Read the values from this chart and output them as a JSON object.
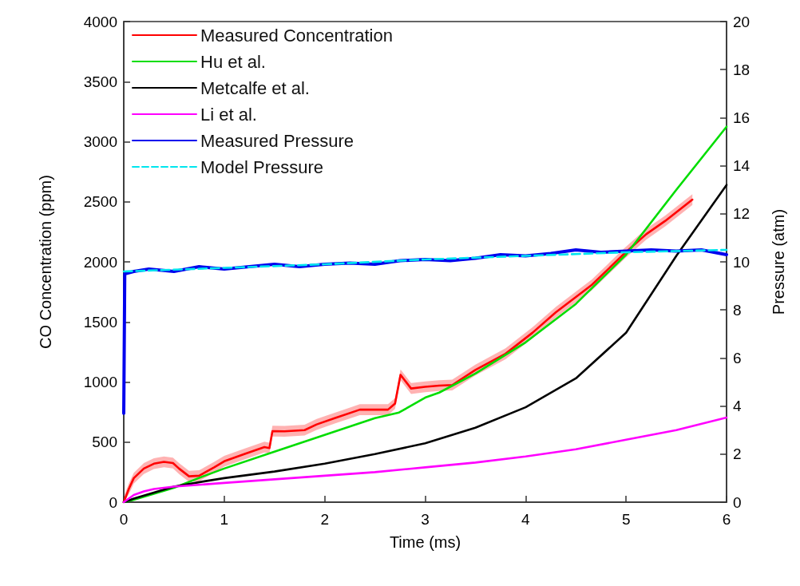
{
  "chart_data": {
    "type": "line",
    "xlabel": "Time (ms)",
    "ylabel": "CO Concentration (ppm)",
    "y2label": "Pressure (atm)",
    "xlim": [
      0,
      6
    ],
    "xticks": [
      0,
      1,
      2,
      3,
      4,
      5,
      6
    ],
    "ylim": [
      0,
      4000
    ],
    "yticks": [
      0,
      500,
      1000,
      1500,
      2000,
      2500,
      3000,
      3500,
      4000
    ],
    "y2lim": [
      0,
      20
    ],
    "y2ticks": [
      0,
      2,
      4,
      6,
      8,
      10,
      12,
      14,
      16,
      18,
      20
    ],
    "grid": false,
    "legend": "top left",
    "marker": "none",
    "series": [
      {
        "name": "Measured Concentration",
        "color": "#ff0000",
        "x": [
          0,
          0.05,
          0.1,
          0.2,
          0.3,
          0.4,
          0.49,
          0.55,
          0.65,
          0.75,
          0.9,
          1.0,
          1.2,
          1.4,
          1.45,
          1.48,
          1.6,
          1.8,
          1.92,
          2.1,
          2.35,
          2.63,
          2.7,
          2.755,
          2.86,
          3.0,
          3.14,
          3.27,
          3.5,
          3.8,
          4.07,
          4.3,
          4.66,
          4.99,
          5.2,
          5.39,
          5.66
        ],
        "values": [
          0,
          110,
          200,
          280,
          320,
          335,
          326,
          280,
          215,
          220,
          290,
          340,
          400,
          458,
          450,
          591,
          590,
          600,
          647,
          700,
          770,
          770,
          820,
          1060,
          946,
          960,
          970,
          975,
          1100,
          1235,
          1411,
          1580,
          1809,
          2075,
          2230,
          2341,
          2518
        ],
        "lower": [
          0,
          65,
          155,
          235,
          275,
          290,
          281,
          235,
          170,
          175,
          245,
          295,
          355,
          413,
          405,
          546,
          545,
          555,
          602,
          655,
          725,
          725,
          775,
          1015,
          901,
          915,
          925,
          930,
          1055,
          1190,
          1366,
          1535,
          1764,
          2030,
          2185,
          2296,
          2473
        ],
        "upper": [
          45,
          155,
          245,
          325,
          365,
          380,
          371,
          325,
          260,
          265,
          335,
          385,
          445,
          503,
          495,
          636,
          635,
          645,
          692,
          745,
          815,
          815,
          865,
          1105,
          991,
          1005,
          1015,
          1020,
          1145,
          1280,
          1456,
          1625,
          1854,
          2120,
          2275,
          2386,
          2563
        ]
      },
      {
        "name": "Hu et al.",
        "color": "#00dd00",
        "x": [
          0,
          0.1,
          0.5,
          0.79,
          1,
          1.5,
          2,
          2.5,
          2.74,
          3,
          3.14,
          3.5,
          4,
          4.5,
          5,
          5.5,
          6
        ],
        "values": [
          0,
          20,
          120,
          215,
          280,
          420,
          560,
          700,
          746,
          870,
          912,
          1070,
          1330,
          1650,
          2060,
          2600,
          3125
        ]
      },
      {
        "name": "Metcalfe et al.",
        "color": "#000000",
        "x": [
          0,
          0.1,
          0.3,
          0.5,
          0.79,
          1,
          1.5,
          2,
          2.5,
          3,
          3.5,
          4,
          4.5,
          5,
          5.5,
          6
        ],
        "values": [
          0,
          30,
          80,
          130,
          172,
          200,
          255,
          320,
          400,
          490,
          620,
          790,
          1030,
          1410,
          2050,
          2640
        ]
      },
      {
        "name": "Li et al.",
        "color": "#ff00ff",
        "x": [
          0,
          0.1,
          0.2,
          0.3,
          0.5,
          1,
          1.5,
          2,
          2.5,
          3,
          3.5,
          4,
          4.5,
          5,
          5.5,
          6
        ],
        "values": [
          0,
          60,
          90,
          110,
          130,
          160,
          190,
          220,
          250,
          290,
          330,
          380,
          440,
          520,
          600,
          704
        ]
      },
      {
        "name": "Measured Pressure",
        "color": "#0000ee",
        "axis": "y2",
        "x": [
          0,
          0.01,
          0.1,
          0.25,
          0.5,
          0.75,
          1,
          1.25,
          1.5,
          1.75,
          2,
          2.25,
          2.5,
          2.75,
          3,
          3.25,
          3.5,
          3.75,
          4,
          4.25,
          4.5,
          4.75,
          5,
          5.25,
          5.5,
          5.75,
          6
        ],
        "values": [
          3.7,
          9.5,
          9.6,
          9.7,
          9.6,
          9.8,
          9.7,
          9.8,
          9.9,
          9.8,
          9.9,
          9.95,
          9.9,
          10.05,
          10.1,
          10.05,
          10.15,
          10.3,
          10.25,
          10.35,
          10.5,
          10.4,
          10.45,
          10.5,
          10.45,
          10.5,
          10.3
        ]
      },
      {
        "name": "Model Pressure",
        "color": "#00e5ee",
        "axis": "y2",
        "line_style": "dashed",
        "x": [
          0,
          1,
          2,
          3,
          4,
          5,
          6
        ],
        "values": [
          9.6,
          9.75,
          9.9,
          10.1,
          10.25,
          10.4,
          10.5
        ]
      }
    ]
  }
}
